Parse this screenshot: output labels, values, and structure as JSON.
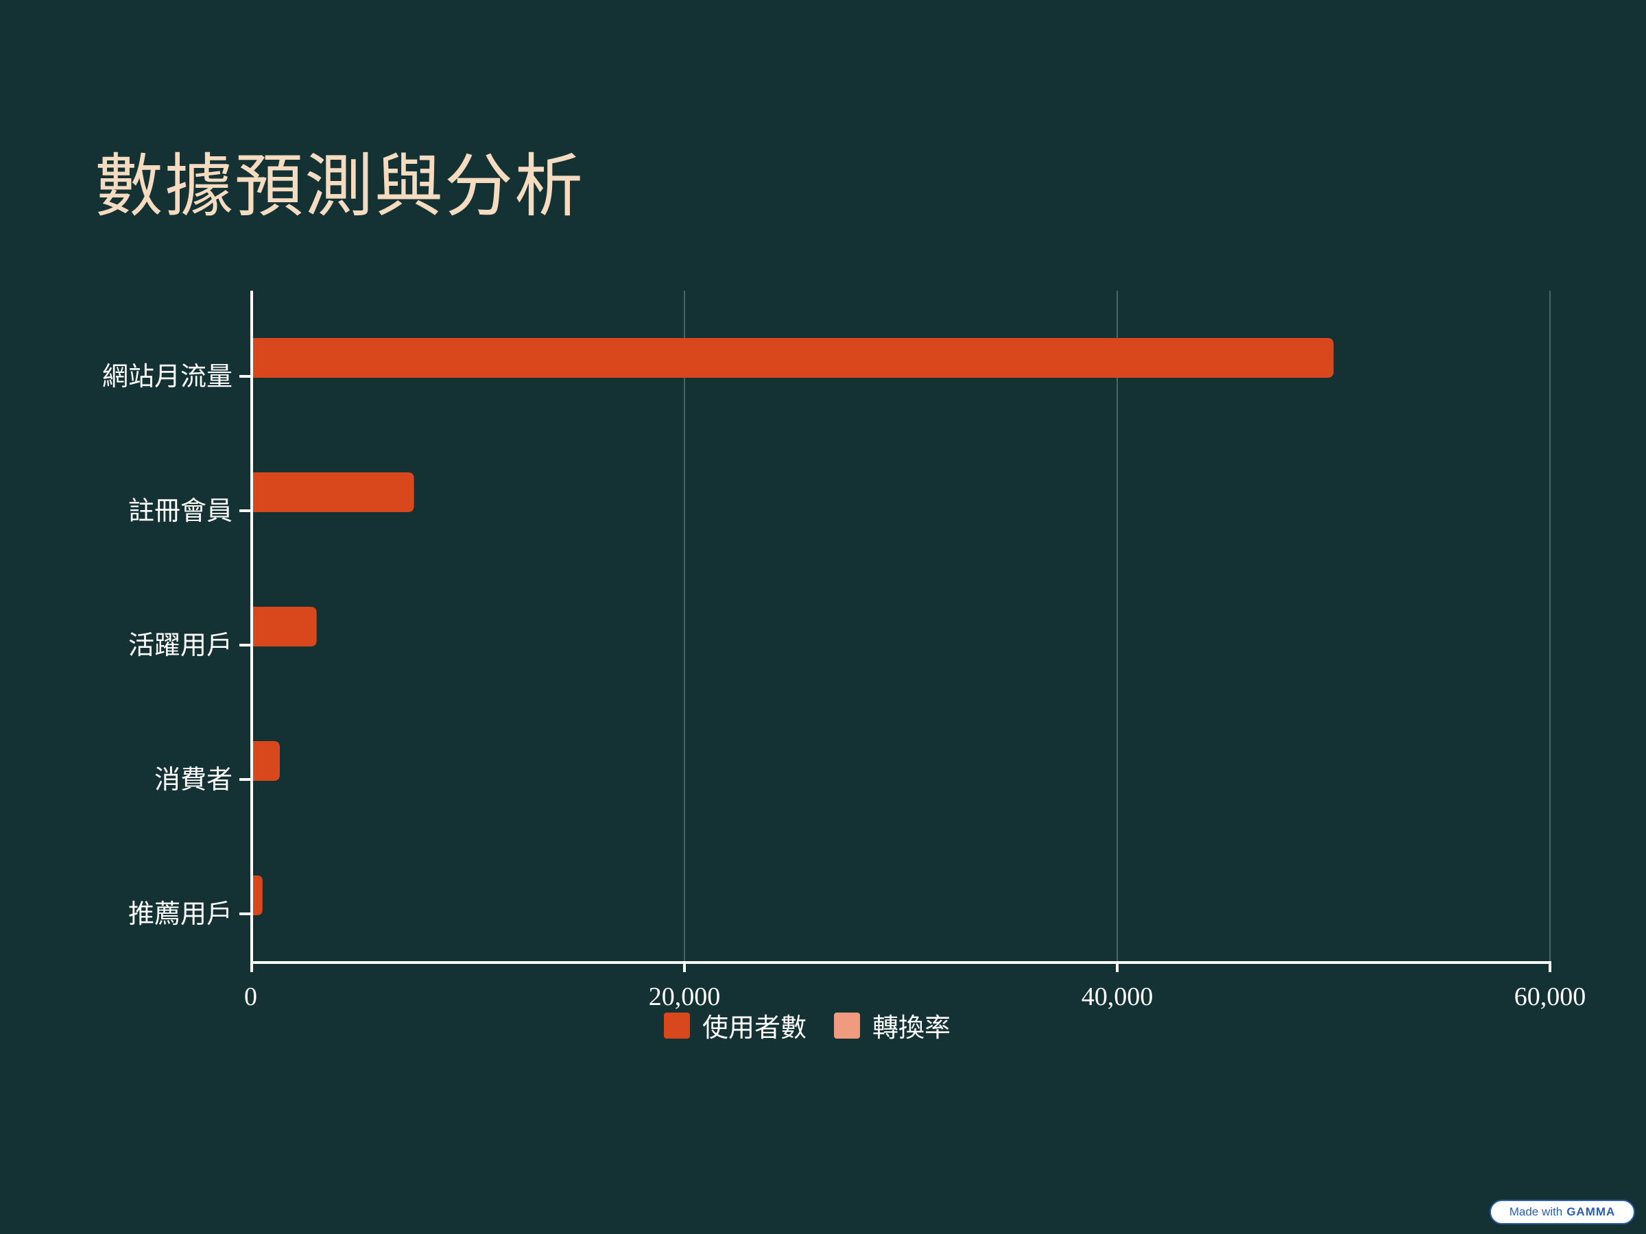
{
  "page": {
    "title": "數據預測與分析"
  },
  "chart_data": {
    "type": "bar",
    "orientation": "horizontal",
    "title": "數據預測與分析",
    "categories": [
      "網站月流量",
      "註冊會員",
      "活躍用戶",
      "消費者",
      "推薦用戶"
    ],
    "series": [
      {
        "name": "使用者數",
        "values": [
          50000,
          7500,
          3000,
          1300,
          500
        ],
        "color": "#d9471c"
      },
      {
        "name": "轉換率",
        "values": [
          null,
          null,
          null,
          null,
          null
        ],
        "color": "#f09a80"
      }
    ],
    "xlim": [
      0,
      60000
    ],
    "xticks": [
      0,
      20000,
      40000,
      60000
    ],
    "xtick_labels": [
      "0",
      "20,000",
      "40,000",
      "60,000"
    ],
    "grid": true,
    "legend_position": "bottom"
  },
  "colors": {
    "background": "#143134",
    "title": "#f5dcc0",
    "axis": "#ffffff",
    "grid": "#4a6466"
  },
  "badge": {
    "prefix": "Made with",
    "brand": "GAMMA"
  }
}
